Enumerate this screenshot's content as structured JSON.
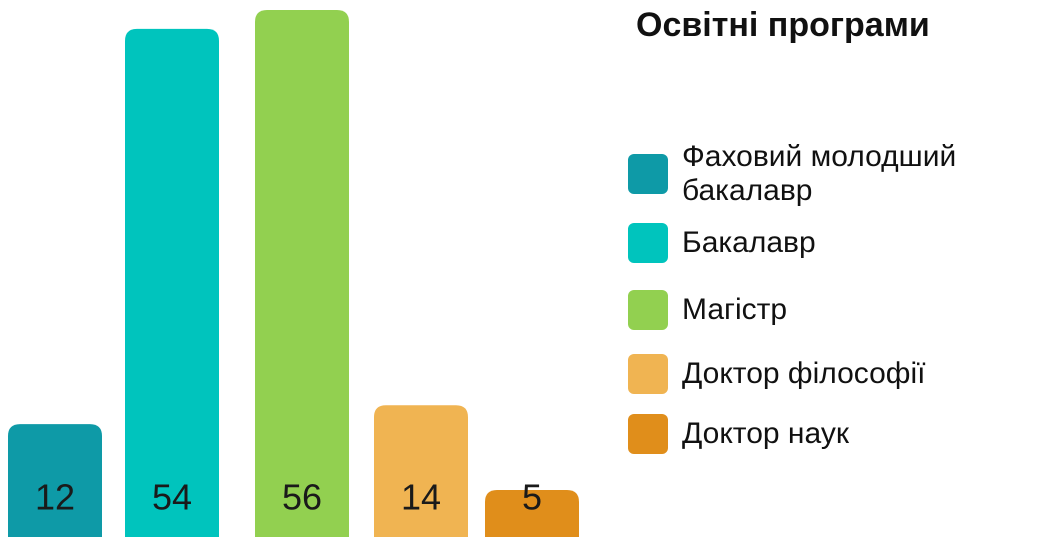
{
  "chart_data": {
    "type": "bar",
    "title": "Освітні програми",
    "categories": [
      "Фаховий молодший бакалавр",
      "Бакалавр",
      "Магістр",
      "Доктор філософії",
      "Доктор наук"
    ],
    "values": [
      12,
      54,
      56,
      14,
      5
    ],
    "colors": [
      "#0e9aa7",
      "#00c4bd",
      "#92d050",
      "#f0b452",
      "#e08e1b"
    ]
  }
}
